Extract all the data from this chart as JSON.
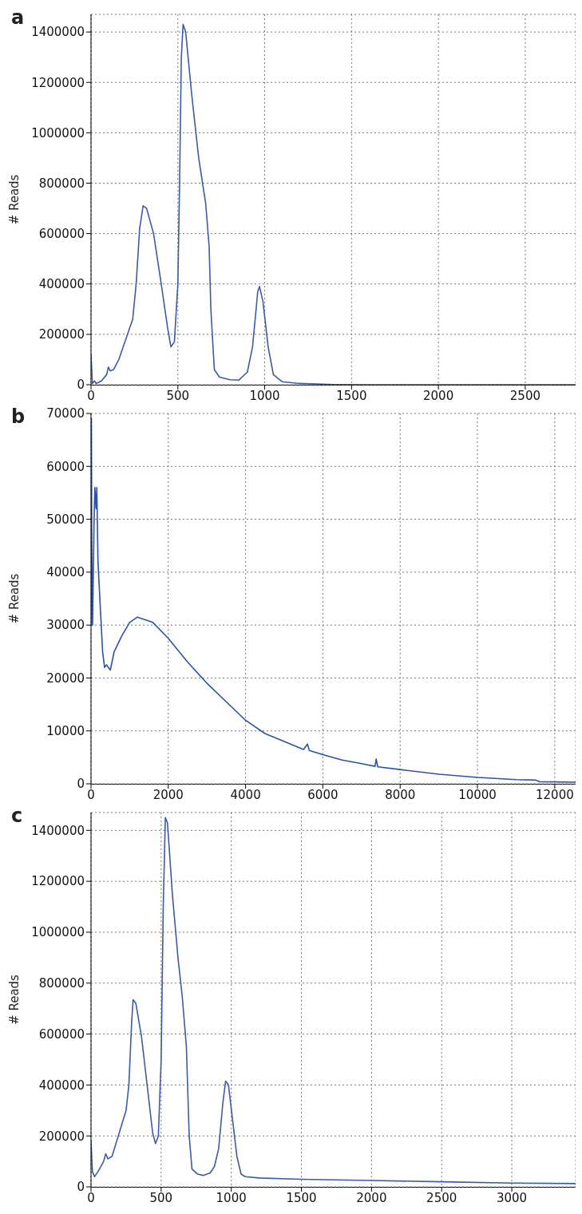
{
  "chart_data": [
    {
      "type": "line",
      "annotations": [
        "a"
      ],
      "ylabel": "# Reads",
      "color": "#3a5ba8",
      "grid": true,
      "xlim": [
        0,
        2790
      ],
      "ylim": [
        0,
        1470000
      ],
      "xticks": [
        0,
        500,
        1000,
        1500,
        2000,
        2500
      ],
      "yticks": [
        0,
        200000,
        400000,
        600000,
        800000,
        1000000,
        1200000,
        1400000
      ],
      "x": [
        0,
        8,
        20,
        30,
        60,
        90,
        100,
        110,
        130,
        160,
        200,
        240,
        260,
        280,
        300,
        320,
        360,
        400,
        440,
        460,
        480,
        500,
        510,
        520,
        530,
        545,
        580,
        620,
        660,
        680,
        690,
        710,
        740,
        800,
        850,
        900,
        930,
        960,
        970,
        990,
        1020,
        1050,
        1100,
        1200,
        1400,
        1600,
        2790
      ],
      "values": [
        120000,
        5000,
        15000,
        5000,
        15000,
        40000,
        70000,
        55000,
        60000,
        100000,
        180000,
        260000,
        400000,
        620000,
        710000,
        700000,
        600000,
        420000,
        230000,
        150000,
        170000,
        400000,
        800000,
        1300000,
        1430000,
        1400000,
        1150000,
        900000,
        720000,
        550000,
        300000,
        60000,
        30000,
        20000,
        18000,
        50000,
        150000,
        370000,
        390000,
        330000,
        150000,
        40000,
        12000,
        5000,
        1000,
        0,
        0
      ]
    },
    {
      "type": "line",
      "annotations": [
        "b"
      ],
      "ylabel": "# Reads",
      "color": "#2a52a8",
      "grid": true,
      "xlim": [
        0,
        12540
      ],
      "ylim": [
        0,
        70000
      ],
      "xticks": [
        0,
        2000,
        4000,
        6000,
        8000,
        10000,
        12000
      ],
      "yticks": [
        0,
        10000,
        20000,
        30000,
        40000,
        50000,
        60000,
        70000
      ],
      "x": [
        0,
        10,
        20,
        40,
        80,
        100,
        130,
        150,
        180,
        250,
        300,
        350,
        400,
        450,
        500,
        600,
        800,
        1000,
        1200,
        1600,
        2000,
        2500,
        3000,
        3500,
        4000,
        4500,
        5000,
        5500,
        5600,
        5650,
        6000,
        6500,
        7000,
        7350,
        7380,
        7420,
        8000,
        9000,
        10000,
        11000,
        11500,
        11600,
        12540
      ],
      "values": [
        30000,
        69000,
        45000,
        30000,
        50000,
        56000,
        52000,
        56000,
        42000,
        32000,
        25000,
        22000,
        22500,
        22000,
        21500,
        25000,
        28000,
        30500,
        31500,
        30500,
        27500,
        23000,
        19000,
        15500,
        12000,
        9500,
        8000,
        6500,
        7500,
        6300,
        5500,
        4500,
        3800,
        3300,
        4700,
        3200,
        2700,
        1800,
        1200,
        800,
        700,
        400,
        300
      ]
    },
    {
      "type": "line",
      "annotations": [
        "c"
      ],
      "ylabel": "# Reads",
      "color": "#3a5ba8",
      "grid": true,
      "xlim": [
        0,
        3455
      ],
      "ylim": [
        0,
        1470000
      ],
      "xticks": [
        0,
        500,
        1000,
        1500,
        2000,
        2500,
        3000
      ],
      "yticks": [
        0,
        200000,
        400000,
        600000,
        800000,
        1000000,
        1200000,
        1400000
      ],
      "x": [
        0,
        10,
        25,
        50,
        90,
        105,
        120,
        150,
        200,
        250,
        270,
        290,
        300,
        320,
        360,
        400,
        440,
        460,
        480,
        500,
        515,
        530,
        545,
        580,
        620,
        650,
        680,
        700,
        720,
        760,
        800,
        850,
        880,
        910,
        940,
        960,
        980,
        1010,
        1040,
        1070,
        1100,
        1200,
        1500,
        2000,
        2500,
        3000,
        3455
      ],
      "values": [
        180000,
        60000,
        40000,
        60000,
        100000,
        130000,
        110000,
        120000,
        210000,
        300000,
        400000,
        650000,
        735000,
        720000,
        590000,
        400000,
        210000,
        170000,
        200000,
        500000,
        1100000,
        1450000,
        1430000,
        1150000,
        900000,
        750000,
        550000,
        200000,
        70000,
        50000,
        45000,
        55000,
        80000,
        150000,
        330000,
        415000,
        400000,
        260000,
        120000,
        50000,
        40000,
        35000,
        30000,
        25000,
        20000,
        15000,
        13000
      ]
    }
  ]
}
